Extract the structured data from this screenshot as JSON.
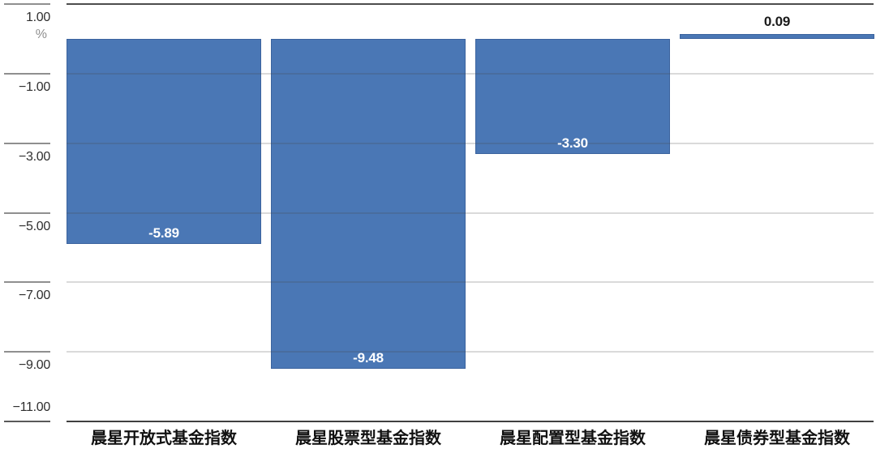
{
  "chart_data": {
    "type": "bar",
    "title": "",
    "categories": [
      "晨星开放式基金指数",
      "晨星股票型基金指数",
      "晨星配置型基金指数",
      "晨星债券型基金指数"
    ],
    "values": [
      -5.89,
      -9.48,
      -3.3,
      0.09
    ],
    "value_labels": [
      "-5.89",
      "-9.48",
      "-3.30",
      "0.09"
    ],
    "unit_label": "%",
    "xlabel": "",
    "ylabel": "%",
    "yticks": [
      1,
      -1,
      -3,
      -5,
      -7,
      -9,
      -11
    ],
    "ytick_labels": [
      "1.00",
      "−1.00",
      "−3.00",
      "−5.00",
      "−7.00",
      "−9.00",
      "−11.00"
    ],
    "ylim": [
      -11,
      1
    ],
    "grid": true,
    "legend": false,
    "colors": {
      "bar_fill": "#4a77b5",
      "bar_border": "rgba(31,62,115,0.35)",
      "value_label_negative": "#ffffff",
      "value_label_positive": "#1a1a1a",
      "top_axis_line": "#4d4d4d",
      "bottom_axis_line": "#404040",
      "gridline_overlay": "rgba(70,70,70,0.20)",
      "y_tick_mark": "#8f8f8f",
      "y_tick_mark_last": "#595959",
      "y_tick_label": "#2e2e2e",
      "unit_label": "#8f8f8f",
      "x_label": "#111111"
    }
  }
}
